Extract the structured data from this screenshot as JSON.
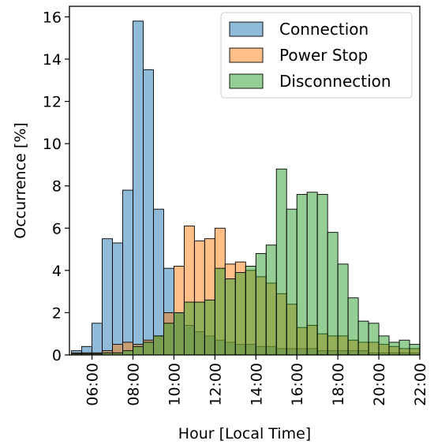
{
  "chart_data": {
    "type": "bar",
    "subtype": "overlaid-histogram",
    "xlabel": "Hour [Local Time]",
    "ylabel": "Occurrence [%]",
    "xlim": [
      4.9,
      22.0
    ],
    "ylim": [
      0,
      16.5
    ],
    "yticks": [
      0,
      2,
      4,
      6,
      8,
      10,
      12,
      14,
      16
    ],
    "xticks": [
      {
        "value": 6,
        "label": "06:00"
      },
      {
        "value": 8,
        "label": "08:00"
      },
      {
        "value": 10,
        "label": "10:00"
      },
      {
        "value": 12,
        "label": "12:00"
      },
      {
        "value": 14,
        "label": "14:00"
      },
      {
        "value": 16,
        "label": "16:00"
      },
      {
        "value": 18,
        "label": "18:00"
      },
      {
        "value": 20,
        "label": "20:00"
      },
      {
        "value": 22,
        "label": "22:00"
      }
    ],
    "bin_width_hours": 0.5,
    "bin_starts": [
      5.0,
      5.5,
      6.0,
      6.5,
      7.0,
      7.5,
      8.0,
      8.5,
      9.0,
      9.5,
      10.0,
      10.5,
      11.0,
      11.5,
      12.0,
      12.5,
      13.0,
      13.5,
      14.0,
      14.5,
      15.0,
      15.5,
      16.0,
      16.5,
      17.0,
      17.5,
      18.0,
      18.5,
      19.0,
      19.5,
      20.0,
      20.5,
      21.0,
      21.5
    ],
    "grid": false,
    "legend_position": "top-right",
    "series": [
      {
        "name": "Connection",
        "color": "#1f77b4",
        "values": [
          0.2,
          0.4,
          1.5,
          5.5,
          5.3,
          7.8,
          15.8,
          13.5,
          6.9,
          4.1,
          2.0,
          1.4,
          1.1,
          0.9,
          0.7,
          0.6,
          0.5,
          0.5,
          0.4,
          0.4,
          0.3,
          0.3,
          0.3,
          0.3,
          0.2,
          0.2,
          0.2,
          0.2,
          0.2,
          0.1,
          0.1,
          0.1,
          0.1,
          0.1
        ]
      },
      {
        "name": "Power Stop",
        "color": "#ff7f0e",
        "values": [
          0.1,
          0.1,
          0.1,
          0.2,
          0.5,
          0.6,
          0.5,
          0.7,
          0.9,
          2.0,
          4.2,
          6.1,
          5.4,
          5.5,
          6.0,
          4.3,
          4.4,
          4.0,
          3.7,
          3.4,
          2.9,
          2.4,
          1.3,
          1.4,
          1.0,
          0.9,
          0.9,
          0.7,
          0.6,
          0.6,
          0.5,
          0.4,
          0.3,
          0.3
        ]
      },
      {
        "name": "Disconnection",
        "color": "#2ca02c",
        "values": [
          0.05,
          0.05,
          0.05,
          0.1,
          0.1,
          0.2,
          0.4,
          0.6,
          0.9,
          1.5,
          2.0,
          2.5,
          2.5,
          2.6,
          4.1,
          3.6,
          3.9,
          4.2,
          4.8,
          5.2,
          8.8,
          6.9,
          7.6,
          7.7,
          7.6,
          5.8,
          4.3,
          2.7,
          1.6,
          1.5,
          0.9,
          0.6,
          0.7,
          0.5
        ]
      }
    ]
  }
}
